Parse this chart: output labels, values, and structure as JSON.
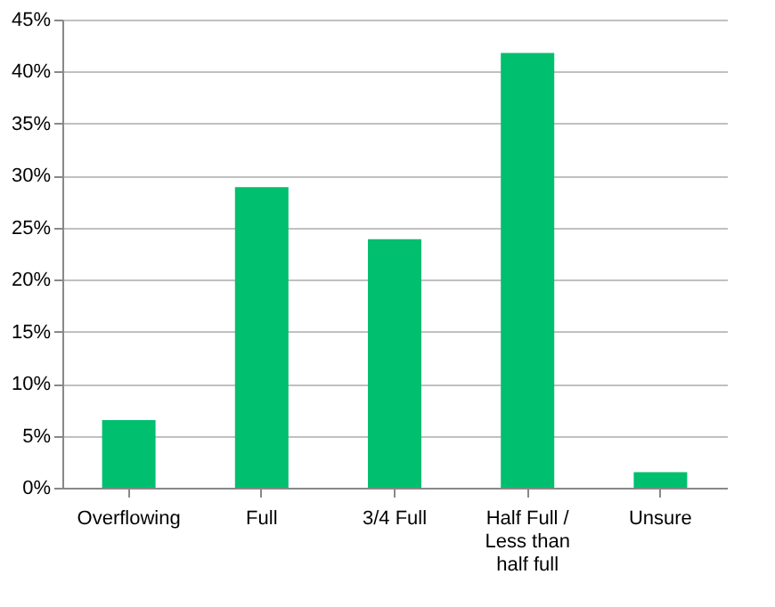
{
  "chart_data": {
    "type": "bar",
    "categories": [
      "Overflowing",
      "Full",
      "3/4 Full",
      "Half Full / Less than half full",
      "Unsure"
    ],
    "values": [
      6.5,
      28.9,
      23.9,
      41.8,
      1.5
    ],
    "color": "#00bf6f",
    "ylim": [
      0,
      45
    ],
    "yticks": [
      {
        "value": 0,
        "label": "0%"
      },
      {
        "value": 5,
        "label": "5%"
      },
      {
        "value": 10,
        "label": "10%"
      },
      {
        "value": 15,
        "label": "15%"
      },
      {
        "value": 20,
        "label": "20%"
      },
      {
        "value": 25,
        "label": "25%"
      },
      {
        "value": 30,
        "label": "30%"
      },
      {
        "value": 35,
        "label": "35%"
      },
      {
        "value": 40,
        "label": "40%"
      },
      {
        "value": 45,
        "label": "45%"
      }
    ],
    "grid": "y"
  }
}
